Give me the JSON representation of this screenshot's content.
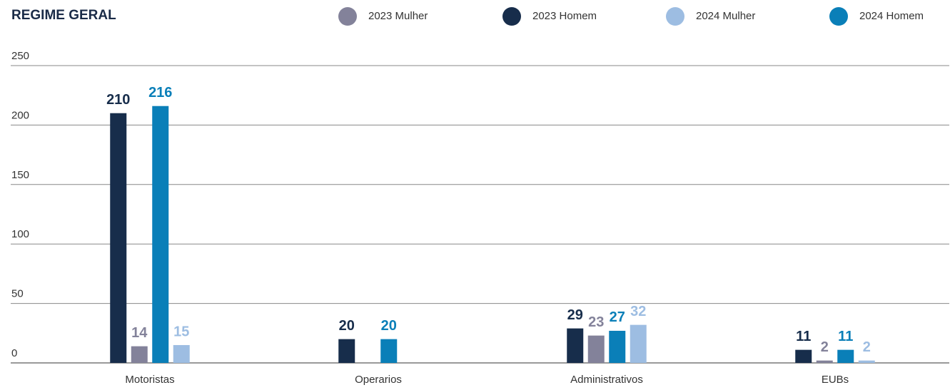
{
  "chart_data": {
    "type": "bar",
    "title": "REGIME GERAL",
    "categories": [
      "Motoristas",
      "Operarios",
      "Administrativos",
      "EUBs"
    ],
    "series": [
      {
        "name": "2023 Mulher",
        "color": "#83829a",
        "values": [
          14,
          null,
          23,
          2
        ]
      },
      {
        "name": "2023 Homem",
        "color": "#172d4b",
        "values": [
          210,
          20,
          29,
          11
        ]
      },
      {
        "name": "2024 Mulher",
        "color": "#9dbde2",
        "values": [
          15,
          null,
          32,
          2
        ]
      },
      {
        "name": "2024 Homem",
        "color": "#0a7fb8",
        "values": [
          216,
          20,
          27,
          11
        ]
      }
    ],
    "ylim": [
      0,
      250
    ],
    "yticks": [
      0,
      50,
      100,
      150,
      200,
      250
    ],
    "grid": true,
    "legend": "top"
  }
}
